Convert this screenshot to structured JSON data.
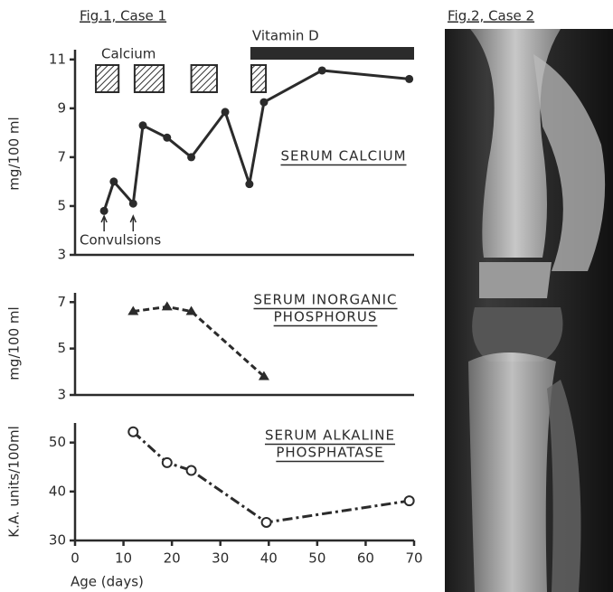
{
  "fig1_label": "Fig.1, Case 1",
  "fig2_label": "Fig.2, Case 2",
  "chart_data": [
    {
      "type": "line",
      "title": [
        "SERUM CALCIUM"
      ],
      "ylabel": "mg/100 ml",
      "x": [
        6,
        8,
        12,
        14,
        19,
        24,
        31,
        36,
        39,
        51,
        69
      ],
      "values": [
        4.8,
        6.0,
        5.1,
        8.3,
        7.8,
        7.0,
        8.85,
        5.9,
        9.25,
        10.55,
        10.2
      ],
      "marker": "filled-circle",
      "line_style": "solid",
      "color": "#2b2b2b",
      "xlim": [
        0,
        70
      ],
      "ylim": [
        3,
        11.4
      ],
      "yticks": [
        3,
        5,
        7,
        9,
        11
      ],
      "calcium_label": "Calcium",
      "calcium_periods": [
        [
          4.3,
          9
        ],
        [
          12.3,
          18.3
        ],
        [
          24,
          29.3
        ],
        [
          36.4,
          39.4
        ]
      ],
      "vitamin_d_label": "Vitamin D",
      "vitamin_d_period": [
        36.2,
        70
      ],
      "convulsions_label": "Convulsions",
      "convulsion_days": [
        6,
        12
      ]
    },
    {
      "type": "line",
      "title": [
        "SERUM INORGANIC",
        "PHOSPHORUS"
      ],
      "ylabel": "mg/100 ml",
      "x": [
        12,
        19,
        24,
        39
      ],
      "values": [
        6.6,
        6.8,
        6.6,
        3.8
      ],
      "marker": "triangle",
      "line_style": "dashed",
      "color": "#2b2b2b",
      "xlim": [
        0,
        70
      ],
      "ylim": [
        3,
        7.4
      ],
      "yticks": [
        3,
        5,
        7
      ]
    },
    {
      "type": "line",
      "title": [
        "SERUM ALKALINE",
        "PHOSPHATASE"
      ],
      "ylabel": "K.A. units/100ml",
      "x": [
        12,
        19,
        24,
        39.5,
        69
      ],
      "values": [
        52.2,
        45.9,
        44.3,
        33.7,
        38.1
      ],
      "marker": "open-circle",
      "line_style": "dash-dot",
      "color": "#2b2b2b",
      "xlim": [
        0,
        70
      ],
      "ylim": [
        30,
        54
      ],
      "yticks": [
        30,
        40,
        50
      ],
      "xticks": [
        0,
        10,
        20,
        30,
        40,
        50,
        60,
        70
      ],
      "xlabel": "Age (days)"
    }
  ]
}
